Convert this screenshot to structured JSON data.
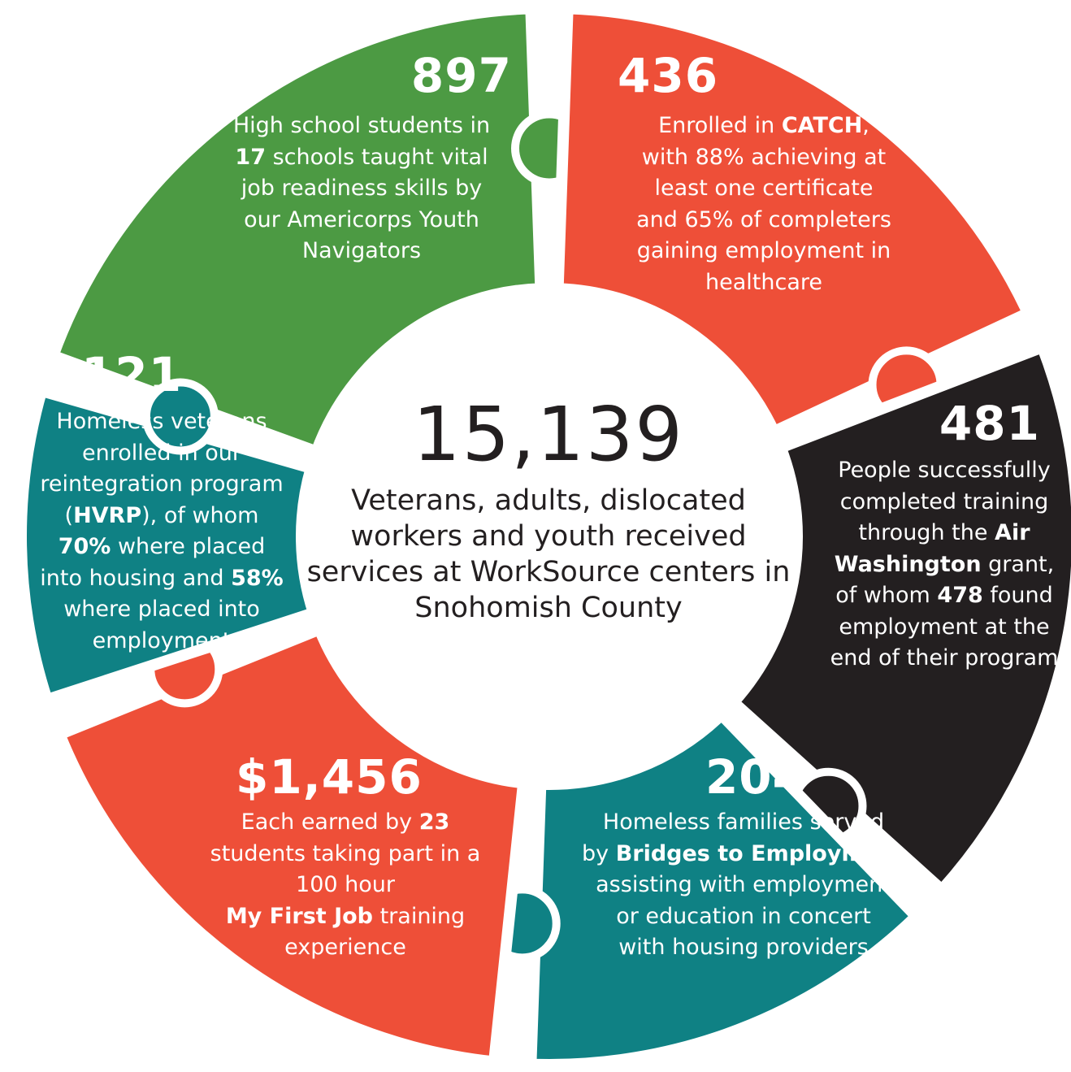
{
  "colors": {
    "green": "#4c9a43",
    "red": "#ee4f38",
    "black": "#231f20",
    "teal": "#0f8184",
    "center_text": "#231f20",
    "white": "#ffffff"
  },
  "center": {
    "number": "15,139",
    "description": "Veterans, adults, dislocated workers and youth received services at WorkSource centers in Snohomish County"
  },
  "pieces": [
    {
      "id": "green",
      "number": "897",
      "lines": [
        [
          "High school students in"
        ],
        [
          {
            "b": "17"
          },
          " schools taught vital"
        ],
        [
          "job readiness skills by"
        ],
        [
          "our Americorps Youth"
        ],
        [
          "Navigators"
        ]
      ]
    },
    {
      "id": "red-top",
      "number": "436",
      "lines": [
        [
          "Enrolled in ",
          {
            "b": "CATCH"
          },
          ","
        ],
        [
          "with 88% achieving at"
        ],
        [
          "least one certificate"
        ],
        [
          "and 65% of completers"
        ],
        [
          "gaining employment in"
        ],
        [
          "healthcare"
        ]
      ]
    },
    {
      "id": "black",
      "number": "481",
      "lines": [
        [
          "People successfully"
        ],
        [
          "completed training"
        ],
        [
          "through the ",
          {
            "b": "Air"
          }
        ],
        [
          {
            "b": "Washington"
          },
          " grant,"
        ],
        [
          "of whom ",
          {
            "b": "478"
          },
          " found"
        ],
        [
          "employment at the"
        ],
        [
          "end of their program"
        ]
      ]
    },
    {
      "id": "teal-bottom",
      "number": "204",
      "lines": [
        [
          "Homeless families served"
        ],
        [
          "by ",
          {
            "b": "Bridges to Employment"
          }
        ],
        [
          "assisting with employment"
        ],
        [
          "or education in concert"
        ],
        [
          "with housing providers"
        ]
      ]
    },
    {
      "id": "red-bottom",
      "number": "$1,456",
      "lines": [
        [
          "Each earned by ",
          {
            "b": "23"
          }
        ],
        [
          "students taking part in a"
        ],
        [
          "100 hour"
        ],
        [
          {
            "b": "My First Job"
          },
          " training"
        ],
        [
          "experience"
        ]
      ]
    },
    {
      "id": "teal-left",
      "number": "121",
      "lines": [
        [
          "Homeless veterans"
        ],
        [
          "enrolled in our"
        ],
        [
          "reintegration program"
        ],
        [
          "(",
          {
            "b": "HVRP"
          },
          "), of whom"
        ],
        [
          {
            "b": "70%"
          },
          " where placed"
        ],
        [
          "into housing and ",
          {
            "b": "58%"
          }
        ],
        [
          "where placed into"
        ],
        [
          "employment"
        ]
      ]
    }
  ]
}
